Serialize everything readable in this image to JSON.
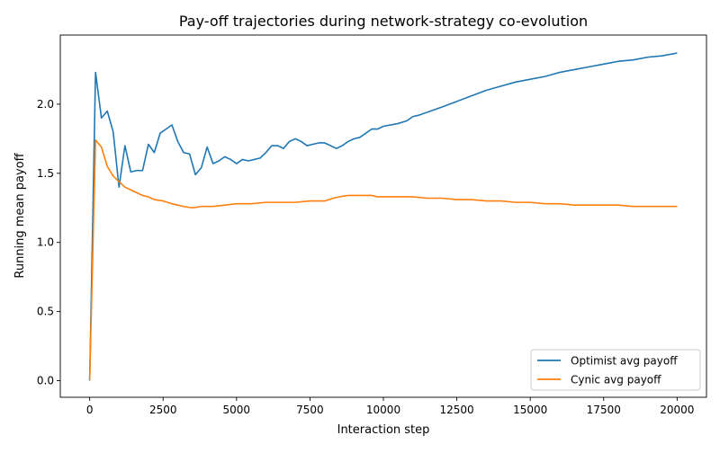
{
  "chart_data": {
    "type": "line",
    "title": "Pay-off trajectories during network-strategy co-evolution",
    "xlabel": "Interaction step",
    "ylabel": "Running mean payoff",
    "xlim": [
      -1000,
      21000
    ],
    "ylim": [
      -0.12,
      2.5
    ],
    "x_ticks": [
      0,
      2500,
      5000,
      7500,
      10000,
      12500,
      15000,
      17500,
      20000
    ],
    "y_ticks": [
      0.0,
      0.5,
      1.0,
      1.5,
      2.0
    ],
    "x_tick_labels": [
      "0",
      "2500",
      "5000",
      "7500",
      "10000",
      "12500",
      "15000",
      "17500",
      "20000"
    ],
    "y_tick_labels": [
      "0.0",
      "0.5",
      "1.0",
      "1.5",
      "2.0"
    ],
    "grid": false,
    "legend_position": "bottom-right",
    "series": [
      {
        "name": "Optimist avg payoff",
        "color": "#1f77b4",
        "points": [
          [
            0,
            0.0
          ],
          [
            200,
            2.23
          ],
          [
            400,
            1.9
          ],
          [
            600,
            1.95
          ],
          [
            800,
            1.8
          ],
          [
            1000,
            1.4
          ],
          [
            1200,
            1.7
          ],
          [
            1400,
            1.51
          ],
          [
            1600,
            1.52
          ],
          [
            1800,
            1.52
          ],
          [
            2000,
            1.71
          ],
          [
            2200,
            1.65
          ],
          [
            2400,
            1.79
          ],
          [
            2600,
            1.82
          ],
          [
            2800,
            1.85
          ],
          [
            3000,
            1.73
          ],
          [
            3200,
            1.65
          ],
          [
            3400,
            1.64
          ],
          [
            3600,
            1.49
          ],
          [
            3800,
            1.54
          ],
          [
            4000,
            1.69
          ],
          [
            4200,
            1.57
          ],
          [
            4400,
            1.59
          ],
          [
            4600,
            1.62
          ],
          [
            4800,
            1.6
          ],
          [
            5000,
            1.57
          ],
          [
            5200,
            1.6
          ],
          [
            5400,
            1.59
          ],
          [
            5600,
            1.6
          ],
          [
            5800,
            1.61
          ],
          [
            6000,
            1.65
          ],
          [
            6200,
            1.7
          ],
          [
            6400,
            1.7
          ],
          [
            6600,
            1.68
          ],
          [
            6800,
            1.73
          ],
          [
            7000,
            1.75
          ],
          [
            7200,
            1.73
          ],
          [
            7400,
            1.7
          ],
          [
            7600,
            1.71
          ],
          [
            7800,
            1.72
          ],
          [
            8000,
            1.72
          ],
          [
            8200,
            1.7
          ],
          [
            8400,
            1.68
          ],
          [
            8600,
            1.7
          ],
          [
            8800,
            1.73
          ],
          [
            9000,
            1.75
          ],
          [
            9200,
            1.76
          ],
          [
            9400,
            1.79
          ],
          [
            9600,
            1.82
          ],
          [
            9800,
            1.82
          ],
          [
            10000,
            1.84
          ],
          [
            10500,
            1.86
          ],
          [
            10800,
            1.88
          ],
          [
            11000,
            1.91
          ],
          [
            11200,
            1.92
          ],
          [
            11600,
            1.95
          ],
          [
            12000,
            1.98
          ],
          [
            12500,
            2.02
          ],
          [
            13000,
            2.06
          ],
          [
            13500,
            2.1
          ],
          [
            14000,
            2.13
          ],
          [
            14500,
            2.16
          ],
          [
            15000,
            2.18
          ],
          [
            15500,
            2.2
          ],
          [
            16000,
            2.23
          ],
          [
            16500,
            2.25
          ],
          [
            17000,
            2.27
          ],
          [
            17500,
            2.29
          ],
          [
            18000,
            2.31
          ],
          [
            18500,
            2.32
          ],
          [
            19000,
            2.34
          ],
          [
            19500,
            2.35
          ],
          [
            20000,
            2.37
          ]
        ]
      },
      {
        "name": "Cynic avg payoff",
        "color": "#ff7f0e",
        "points": [
          [
            0,
            0.0
          ],
          [
            200,
            1.74
          ],
          [
            400,
            1.69
          ],
          [
            600,
            1.55
          ],
          [
            800,
            1.48
          ],
          [
            1000,
            1.44
          ],
          [
            1200,
            1.4
          ],
          [
            1400,
            1.38
          ],
          [
            1600,
            1.36
          ],
          [
            1800,
            1.34
          ],
          [
            2000,
            1.33
          ],
          [
            2200,
            1.31
          ],
          [
            2500,
            1.3
          ],
          [
            2800,
            1.28
          ],
          [
            3000,
            1.27
          ],
          [
            3200,
            1.26
          ],
          [
            3500,
            1.25
          ],
          [
            3800,
            1.26
          ],
          [
            4200,
            1.26
          ],
          [
            4600,
            1.27
          ],
          [
            5000,
            1.28
          ],
          [
            5500,
            1.28
          ],
          [
            6000,
            1.29
          ],
          [
            6500,
            1.29
          ],
          [
            7000,
            1.29
          ],
          [
            7500,
            1.3
          ],
          [
            8000,
            1.3
          ],
          [
            8300,
            1.32
          ],
          [
            8500,
            1.33
          ],
          [
            8800,
            1.34
          ],
          [
            9200,
            1.34
          ],
          [
            9600,
            1.34
          ],
          [
            9800,
            1.33
          ],
          [
            10000,
            1.33
          ],
          [
            10500,
            1.33
          ],
          [
            11000,
            1.33
          ],
          [
            11500,
            1.32
          ],
          [
            12000,
            1.32
          ],
          [
            12500,
            1.31
          ],
          [
            13000,
            1.31
          ],
          [
            13500,
            1.3
          ],
          [
            14000,
            1.3
          ],
          [
            14500,
            1.29
          ],
          [
            15000,
            1.29
          ],
          [
            15500,
            1.28
          ],
          [
            16000,
            1.28
          ],
          [
            16500,
            1.27
          ],
          [
            17000,
            1.27
          ],
          [
            17500,
            1.27
          ],
          [
            18000,
            1.27
          ],
          [
            18500,
            1.26
          ],
          [
            19000,
            1.26
          ],
          [
            19500,
            1.26
          ],
          [
            20000,
            1.26
          ]
        ]
      }
    ]
  }
}
